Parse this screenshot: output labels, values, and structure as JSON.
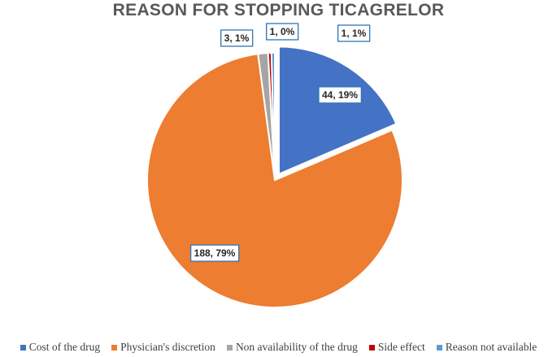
{
  "chart_data": {
    "type": "pie",
    "title": "REASON FOR STOPPING TICAGRELOR",
    "slices": [
      {
        "name": "Cost of the drug",
        "value": 44,
        "label": "44, 19%",
        "color": "#4472c4",
        "exploded": true
      },
      {
        "name": "Physician's discretion",
        "value": 188,
        "label": "188, 79%",
        "color": "#ed7d31",
        "exploded": false
      },
      {
        "name": "Non availability of the drug",
        "value": 3,
        "label": "3, 1%",
        "color": "#a5a5a5",
        "exploded": false
      },
      {
        "name": "Side effect",
        "value": 1,
        "label": "1, 0%",
        "color": "#c00000",
        "exploded": false
      },
      {
        "name": "Reason not available",
        "value": 1,
        "label": "1, 1%",
        "color": "#5b9bd5",
        "exploded": false
      }
    ],
    "legend_position": "bottom"
  }
}
